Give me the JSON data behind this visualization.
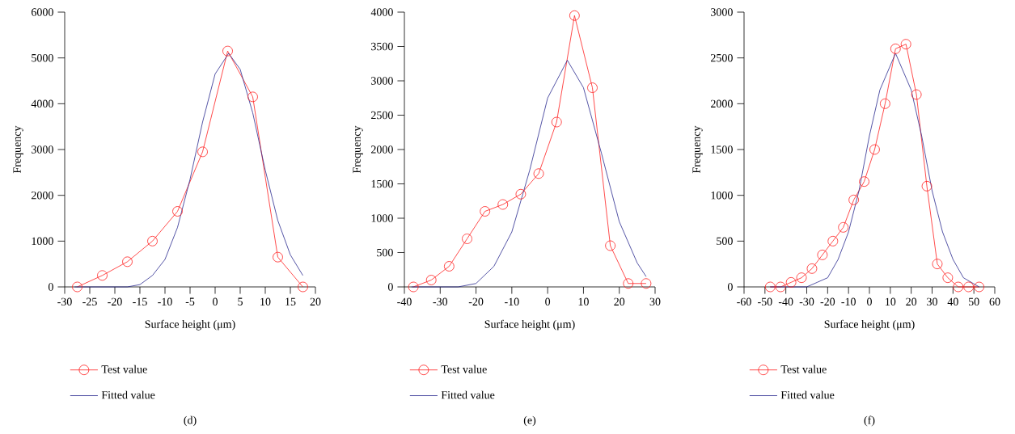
{
  "chart_data": [
    {
      "type": "line",
      "title": "(d)",
      "xlabel": "Surface height (μm)",
      "ylabel": "Frequency",
      "xlim": [
        -30,
        20
      ],
      "ylim": [
        0,
        6000
      ],
      "xticks": [
        -30,
        -25,
        -20,
        -15,
        -10,
        -5,
        0,
        5,
        10,
        15,
        20
      ],
      "yticks": [
        0,
        1000,
        2000,
        3000,
        4000,
        5000,
        6000
      ],
      "legend": "bottom",
      "grid": false,
      "series": [
        {
          "name": "Test value",
          "color": "#ff2020",
          "marker": "circle",
          "x": [
            -27.5,
            -22.5,
            -17.5,
            -12.5,
            -7.5,
            -2.5,
            2.5,
            7.5,
            12.5,
            17.5
          ],
          "values": [
            0,
            250,
            550,
            1000,
            1650,
            2950,
            5150,
            4150,
            650,
            0
          ]
        },
        {
          "name": "Fitted value",
          "color": "#2b2b8f",
          "marker": "none",
          "x": [
            -28,
            -25,
            -20,
            -17.5,
            -15,
            -12.5,
            -10,
            -7.5,
            -5,
            -2.5,
            0,
            2.7,
            5,
            7.5,
            10,
            12.5,
            15,
            17.5
          ],
          "values": [
            0,
            0,
            0,
            0,
            50,
            250,
            600,
            1300,
            2350,
            3600,
            4650,
            5100,
            4750,
            3800,
            2550,
            1450,
            700,
            250
          ]
        }
      ]
    },
    {
      "type": "line",
      "title": "(e)",
      "xlabel": "Surface height (μm)",
      "ylabel": "Frequency",
      "xlim": [
        -40,
        30
      ],
      "ylim": [
        0,
        4000
      ],
      "xticks": [
        -40,
        -30,
        -20,
        -10,
        0,
        10,
        20,
        30
      ],
      "yticks": [
        0,
        500,
        1000,
        1500,
        2000,
        2500,
        3000,
        3500,
        4000
      ],
      "legend": "bottom",
      "grid": false,
      "series": [
        {
          "name": "Test value",
          "color": "#ff2020",
          "marker": "circle",
          "x": [
            -37.5,
            -32.5,
            -27.5,
            -22.5,
            -17.5,
            -12.5,
            -7.5,
            -2.5,
            2.5,
            7.5,
            12.5,
            17.5,
            22.5,
            27.5
          ],
          "values": [
            0,
            100,
            300,
            700,
            1100,
            1200,
            1350,
            1650,
            2400,
            3950,
            2900,
            600,
            50,
            50
          ]
        },
        {
          "name": "Fitted value",
          "color": "#2b2b8f",
          "marker": "none",
          "x": [
            -38,
            -25,
            -20,
            -15,
            -10,
            -5,
            0,
            5.5,
            10,
            15,
            20,
            25,
            27.5
          ],
          "values": [
            0,
            0,
            50,
            300,
            800,
            1700,
            2750,
            3300,
            2900,
            1950,
            950,
            350,
            150
          ]
        }
      ]
    },
    {
      "type": "line",
      "title": "(f)",
      "xlabel": "Surface height (μm)",
      "ylabel": "Frequency",
      "xlim": [
        -60,
        60
      ],
      "ylim": [
        0,
        3000
      ],
      "xticks": [
        -60,
        -50,
        -40,
        -30,
        -20,
        -10,
        0,
        10,
        20,
        30,
        40,
        50,
        60
      ],
      "yticks": [
        0,
        500,
        1000,
        1500,
        2000,
        2500,
        3000
      ],
      "legend": "bottom",
      "grid": false,
      "series": [
        {
          "name": "Test value",
          "color": "#ff2020",
          "marker": "circle",
          "x": [
            -47.5,
            -42.5,
            -37.5,
            -32.5,
            -27.5,
            -22.5,
            -17.5,
            -12.5,
            -7.5,
            -2.5,
            2.5,
            7.5,
            12.5,
            17.5,
            22.5,
            27.5,
            32.5,
            37.5,
            42.5,
            47.5,
            52.5
          ],
          "values": [
            0,
            0,
            50,
            100,
            200,
            350,
            500,
            650,
            950,
            1150,
            1500,
            2000,
            2600,
            2650,
            2100,
            1100,
            250,
            100,
            0,
            0,
            0
          ]
        },
        {
          "name": "Fitted value",
          "color": "#2b2b8f",
          "marker": "none",
          "x": [
            -47.5,
            -40,
            -30,
            -25,
            -20,
            -15,
            -10,
            -5,
            0,
            5,
            12.5,
            20,
            25,
            30,
            35,
            40,
            45,
            52.5
          ],
          "values": [
            0,
            0,
            0,
            50,
            100,
            300,
            600,
            1050,
            1650,
            2150,
            2550,
            2150,
            1650,
            1050,
            600,
            300,
            100,
            0
          ]
        }
      ]
    }
  ]
}
